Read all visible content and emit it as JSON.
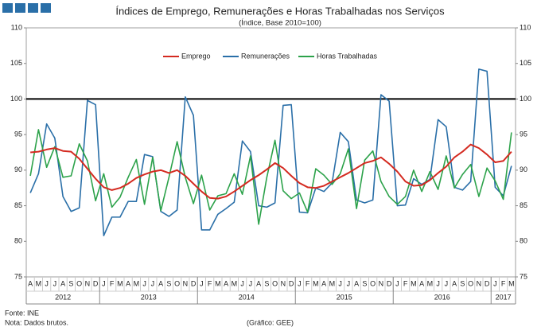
{
  "chart_data": {
    "type": "line",
    "title": "Índices de Emprego, Remunerações e Horas Trabalhadas nos Serviços",
    "subtitle": "(Índice, Base 2010=100)",
    "categories": [
      "A",
      "M",
      "J",
      "J",
      "A",
      "S",
      "O",
      "N",
      "D",
      "J",
      "F",
      "M",
      "A",
      "M",
      "J",
      "J",
      "A",
      "S",
      "O",
      "N",
      "D",
      "J",
      "F",
      "M",
      "A",
      "M",
      "J",
      "J",
      "A",
      "S",
      "O",
      "N",
      "D",
      "J",
      "F",
      "M",
      "A",
      "M",
      "J",
      "J",
      "A",
      "S",
      "O",
      "N",
      "D",
      "J",
      "F",
      "M",
      "A",
      "M",
      "J",
      "J",
      "A",
      "S",
      "O",
      "N",
      "D",
      "J",
      "F",
      "M"
    ],
    "x_groups": [
      {
        "label": "2012",
        "months": 9
      },
      {
        "label": "2013",
        "months": 12
      },
      {
        "label": "2014",
        "months": 12
      },
      {
        "label": "2015",
        "months": 12
      },
      {
        "label": "2016",
        "months": 12
      },
      {
        "label": "2017",
        "months": 3
      }
    ],
    "series": [
      {
        "name": "Emprego",
        "color": "#d42a20",
        "values": [
          92.5,
          92.6,
          92.9,
          93.1,
          92.7,
          92.6,
          91.6,
          90.2,
          88.8,
          87.6,
          87.2,
          87.5,
          88.1,
          88.9,
          89.4,
          89.8,
          90.0,
          89.6,
          90.0,
          89.2,
          88.1,
          87.0,
          86.1,
          86.0,
          86.3,
          87.0,
          87.8,
          88.6,
          89.3,
          90.1,
          91.0,
          90.3,
          89.2,
          88.2,
          87.6,
          87.5,
          87.8,
          88.4,
          89.0,
          89.6,
          90.3,
          91.0,
          91.3,
          91.8,
          90.9,
          89.8,
          88.4,
          87.8,
          87.9,
          88.6,
          89.6,
          90.5,
          91.8,
          92.6,
          93.6,
          93.1,
          92.2,
          91.1,
          91.3,
          92.6
        ]
      },
      {
        "name": "Remunerações",
        "color": "#2a6fa8",
        "values": [
          86.8,
          89.5,
          96.5,
          94.5,
          86.3,
          84.2,
          84.7,
          99.8,
          99.2,
          80.8,
          83.4,
          83.4,
          85.6,
          85.6,
          92.2,
          91.9,
          84.2,
          83.5,
          84.4,
          100.3,
          97.7,
          81.6,
          81.6,
          83.8,
          84.6,
          85.5,
          94.1,
          92.6,
          85.0,
          84.8,
          85.4,
          99.1,
          99.2,
          84.1,
          84.0,
          87.5,
          87.0,
          88.2,
          95.3,
          94.0,
          85.8,
          85.4,
          85.8,
          100.6,
          99.7,
          85.0,
          85.1,
          88.8,
          88.0,
          88.7,
          97.1,
          96.1,
          87.6,
          87.2,
          88.4,
          104.2,
          103.9,
          87.6,
          86.4,
          90.6
        ]
      },
      {
        "name": "Horas Trabalhadas",
        "color": "#2ca24a",
        "values": [
          89.2,
          95.7,
          90.4,
          93.3,
          89.0,
          89.2,
          93.7,
          91.3,
          85.7,
          89.5,
          84.8,
          86.2,
          89.0,
          91.5,
          85.2,
          91.8,
          84.3,
          89.0,
          94.0,
          89.0,
          85.3,
          89.3,
          84.4,
          86.4,
          86.7,
          89.5,
          86.6,
          92.0,
          82.4,
          89.0,
          94.2,
          87.1,
          86.0,
          86.8,
          84.1,
          90.2,
          89.3,
          88.0,
          89.5,
          93.0,
          84.6,
          91.4,
          92.7,
          88.4,
          86.3,
          85.2,
          86.3,
          90.0,
          87.0,
          89.8,
          87.3,
          92.0,
          87.5,
          89.4,
          90.8,
          86.3,
          90.3,
          88.5,
          85.9,
          95.3
        ]
      }
    ],
    "ylim": [
      75,
      110
    ],
    "yticks": [
      75,
      80,
      85,
      90,
      95,
      100,
      105,
      110
    ],
    "reference_line": 100,
    "legend": "top",
    "grid": false,
    "footnotes": [
      "Fonte: INE",
      "Nota: Dados brutos."
    ],
    "source": "(Gráfico: GEE)"
  }
}
